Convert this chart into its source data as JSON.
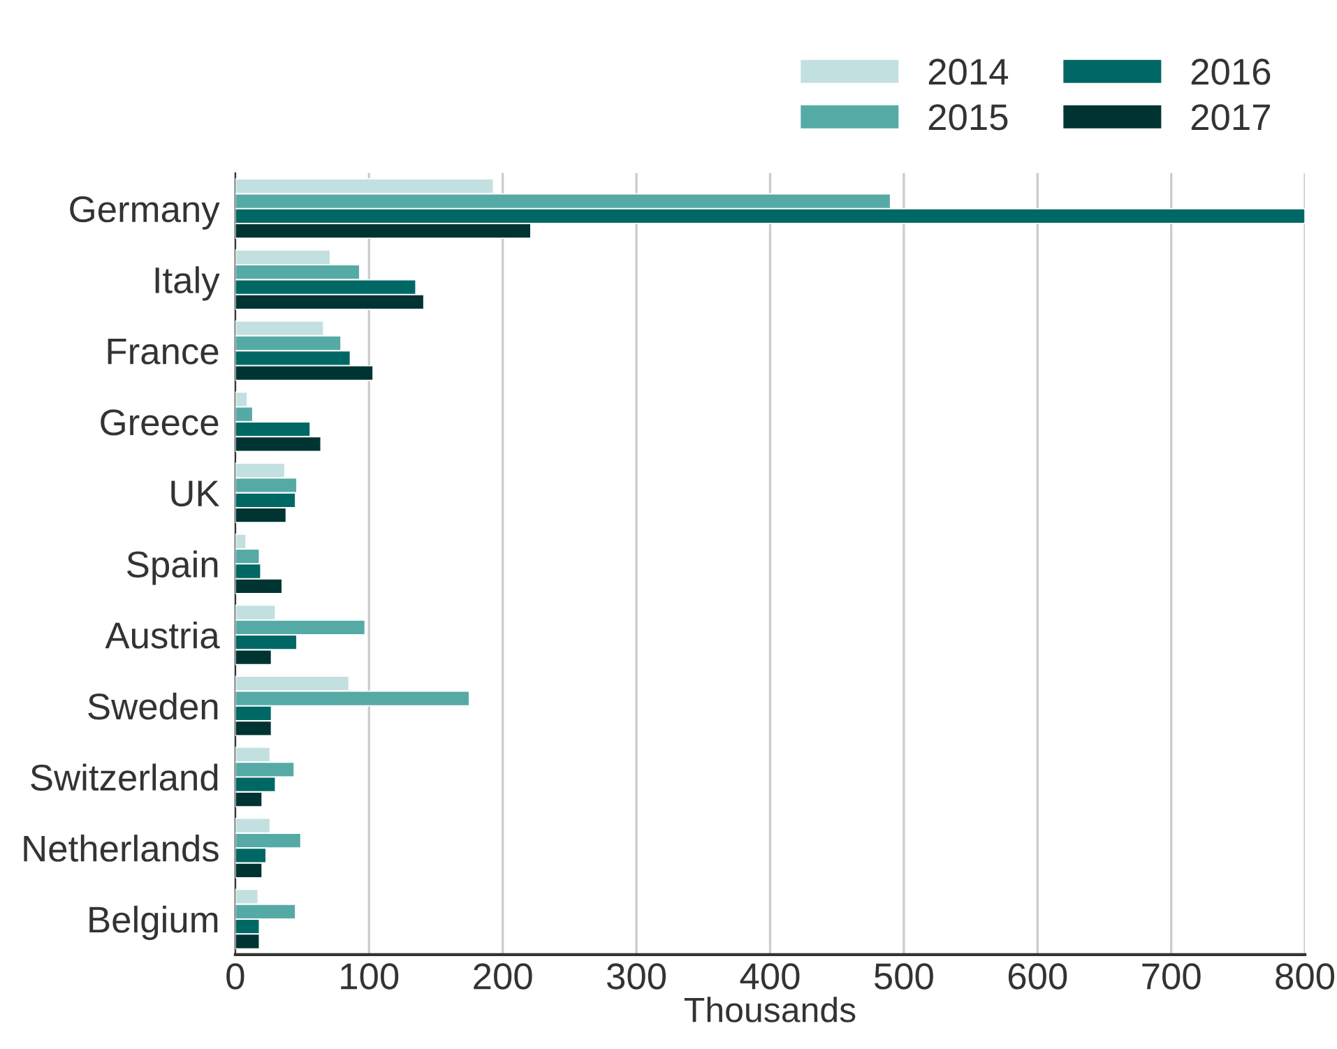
{
  "chart_data": {
    "type": "bar",
    "orientation": "horizontal",
    "xlabel": "Thousands",
    "categories": [
      "Germany",
      "Italy",
      "France",
      "Greece",
      "UK",
      "Spain",
      "Austria",
      "Sweden",
      "Switzerland",
      "Netherlands",
      "Belgium"
    ],
    "series": [
      {
        "name": "2014",
        "color": "#c2e0df",
        "values": [
          193,
          71,
          66,
          9,
          37,
          8,
          30,
          85,
          26,
          26,
          17
        ]
      },
      {
        "name": "2015",
        "color": "#56aaa6",
        "values": [
          490,
          93,
          79,
          13,
          46,
          18,
          97,
          175,
          44,
          49,
          45
        ]
      },
      {
        "name": "2016",
        "color": "#006864",
        "values": [
          800,
          135,
          86,
          56,
          45,
          19,
          46,
          27,
          30,
          23,
          18
        ]
      },
      {
        "name": "2017",
        "color": "#003433",
        "values": [
          221,
          141,
          103,
          64,
          38,
          35,
          27,
          27,
          20,
          20,
          18
        ]
      }
    ],
    "xlim": [
      0,
      800
    ],
    "xticks": [
      0,
      100,
      200,
      300,
      400,
      500,
      600,
      700,
      800
    ],
    "grid": "x",
    "legend": "top right"
  }
}
